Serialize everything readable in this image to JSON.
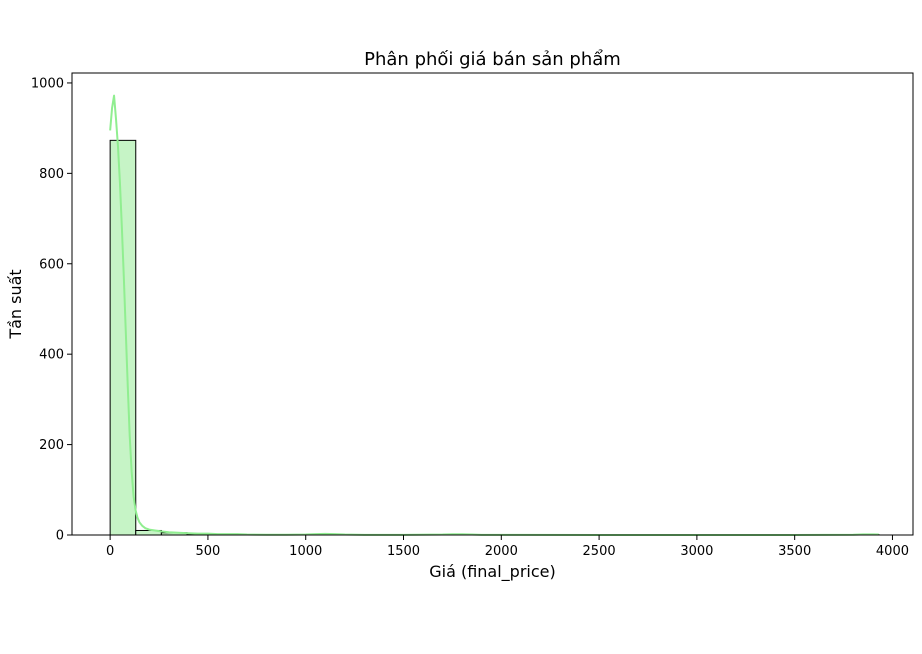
{
  "chart_data": {
    "type": "bar",
    "subtype": "histogram-with-kde",
    "title": "Phân phối giá bán sản phẩm",
    "xlabel": "Giá (final_price)",
    "ylabel": "Tần suất",
    "xlim": [
      -195,
      4105
    ],
    "ylim": [
      0,
      1022
    ],
    "xticks": [
      0,
      500,
      1000,
      1500,
      2000,
      2500,
      3000,
      3500,
      4000
    ],
    "yticks": [
      0,
      200,
      400,
      600,
      800,
      1000
    ],
    "grid": false,
    "bar_color": "#c6f4c6",
    "bar_edge_color": "#000000",
    "kde_color": "#90ee90",
    "bins": [
      {
        "x0": 0,
        "x1": 131,
        "count": 873
      },
      {
        "x0": 131,
        "x1": 262,
        "count": 10
      },
      {
        "x0": 262,
        "x1": 393,
        "count": 5
      },
      {
        "x0": 393,
        "x1": 524,
        "count": 2
      },
      {
        "x0": 524,
        "x1": 655,
        "count": 1
      },
      {
        "x0": 655,
        "x1": 786,
        "count": 1
      },
      {
        "x0": 1048,
        "x1": 1179,
        "count": 1
      },
      {
        "x0": 1703,
        "x1": 1834,
        "count": 1
      },
      {
        "x0": 3799,
        "x1": 3930,
        "count": 1
      }
    ],
    "kde": {
      "x": [
        0,
        10,
        20,
        30,
        40,
        50,
        60,
        70,
        80,
        90,
        100,
        110,
        120,
        130,
        140,
        150,
        165,
        180,
        200,
        230,
        260,
        300,
        350,
        400,
        450,
        500,
        550,
        600,
        650,
        700,
        800,
        900,
        1000,
        1050,
        1100,
        1150,
        1200,
        1300,
        1500,
        1700,
        1750,
        1800,
        1850,
        1900,
        2100,
        2500,
        3000,
        3500,
        3800,
        3850,
        3900,
        3930
      ],
      "y": [
        895,
        945,
        972,
        920,
        860,
        780,
        680,
        570,
        450,
        330,
        220,
        140,
        85,
        55,
        38,
        28,
        20,
        15,
        12,
        10,
        8,
        6,
        5,
        4,
        3,
        3,
        2,
        2,
        2,
        1,
        0.5,
        0.5,
        1,
        2,
        2.5,
        2,
        1,
        0.3,
        0.3,
        1,
        1.8,
        1.8,
        1,
        0.3,
        0.2,
        0.1,
        0.1,
        0.1,
        0.5,
        1.5,
        1.5,
        1
      ]
    }
  }
}
